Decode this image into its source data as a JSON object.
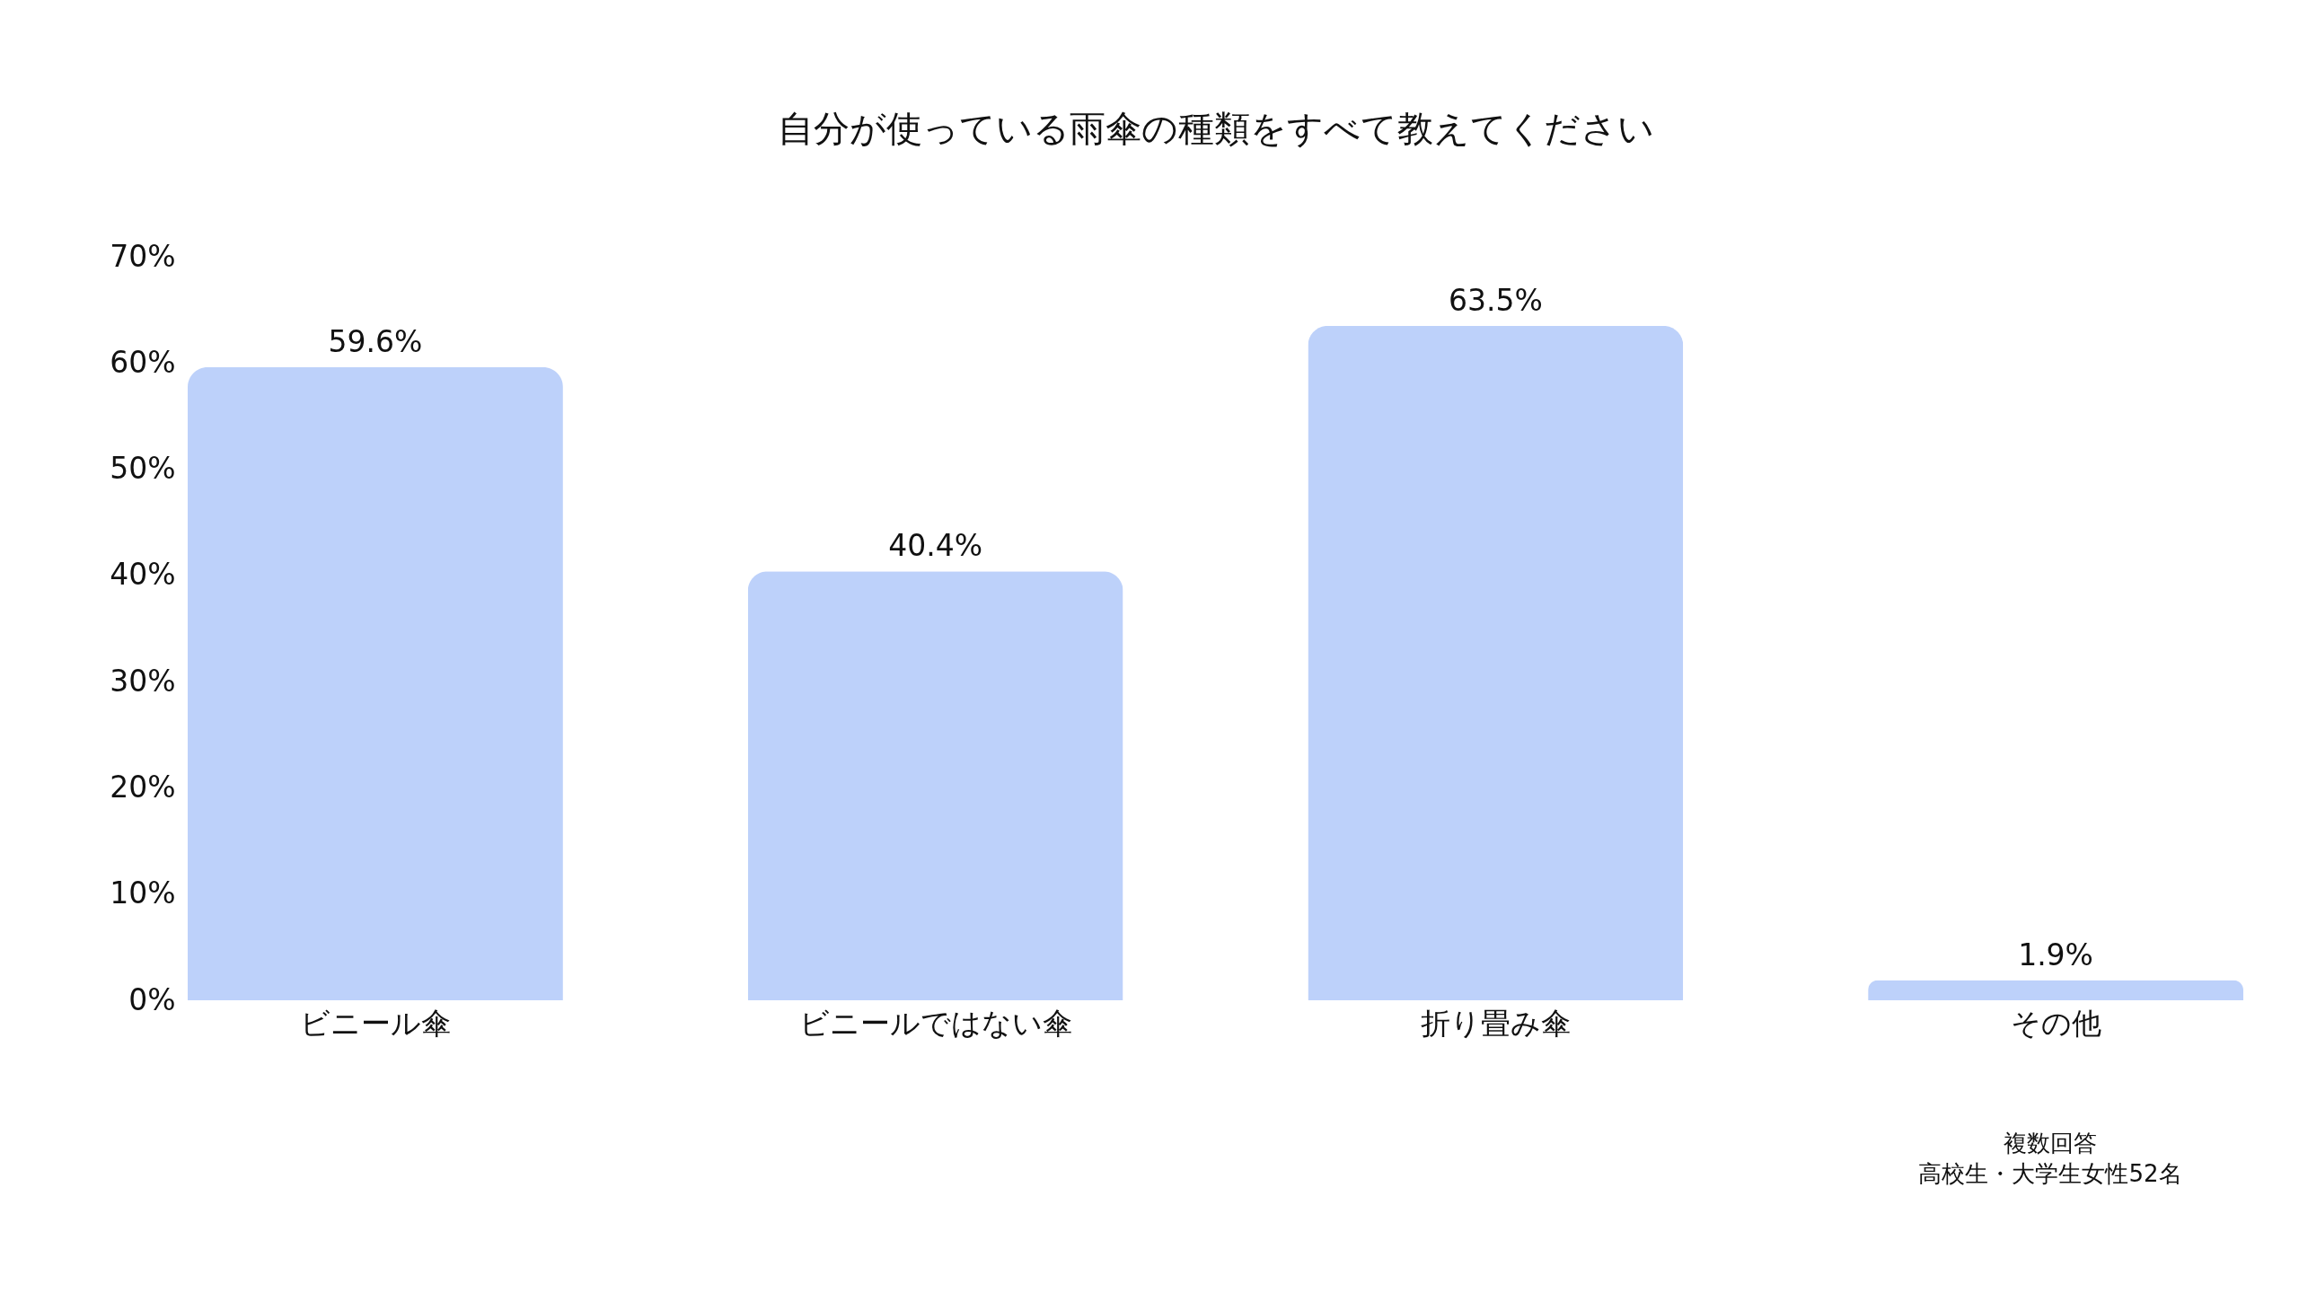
{
  "chart_data": {
    "type": "bar",
    "title": "自分が使っている雨傘の種類をすべて教えてください",
    "categories": [
      "ビニール傘",
      "ビニールではない傘",
      "折り畳み傘",
      "その他"
    ],
    "values": [
      59.6,
      40.4,
      63.5,
      1.9
    ],
    "color": "#bdd1fa",
    "value_labels": [
      "59.6%",
      "40.4%",
      "63.5%",
      "1.9%"
    ],
    "ylim": [
      0,
      70
    ],
    "yticks": [
      {
        "value": 0,
        "label": "0%"
      },
      {
        "value": 10,
        "label": "10%"
      },
      {
        "value": 20,
        "label": "20%"
      },
      {
        "value": 30,
        "label": "30%"
      },
      {
        "value": 40,
        "label": "40%"
      },
      {
        "value": 50,
        "label": "50%"
      },
      {
        "value": 60,
        "label": "60%"
      },
      {
        "value": 70,
        "label": "70%"
      }
    ],
    "grid": false,
    "annotations": [
      "複数回答",
      "高校生・大学生女性52名"
    ]
  }
}
